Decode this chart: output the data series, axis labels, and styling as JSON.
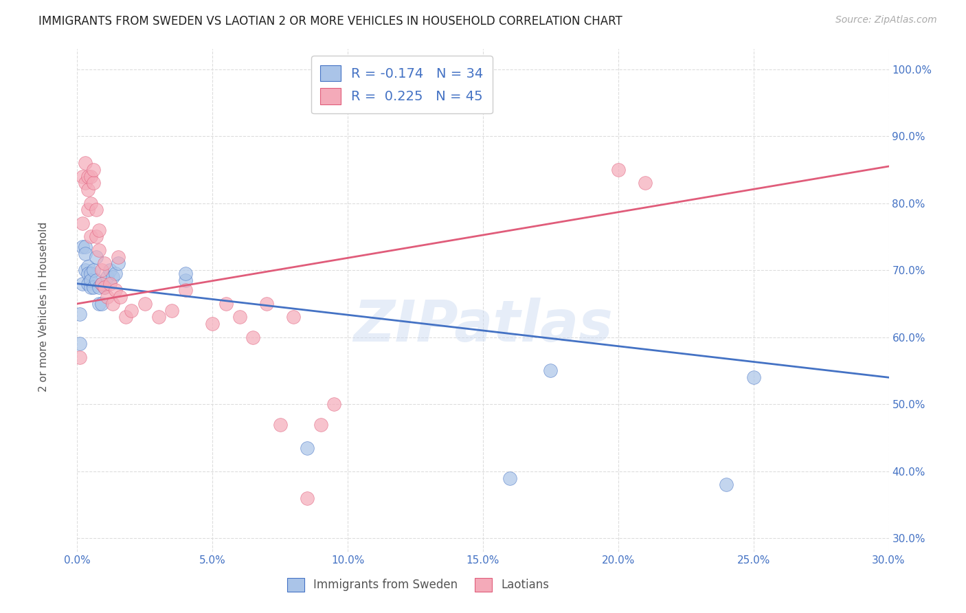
{
  "title": "IMMIGRANTS FROM SWEDEN VS LAOTIAN 2 OR MORE VEHICLES IN HOUSEHOLD CORRELATION CHART",
  "source": "Source: ZipAtlas.com",
  "ylabel": "2 or more Vehicles in Household",
  "xlim": [
    0.0,
    0.3
  ],
  "ylim": [
    0.28,
    1.03
  ],
  "xticks": [
    0.0,
    0.05,
    0.1,
    0.15,
    0.2,
    0.25,
    0.3
  ],
  "yticks": [
    0.3,
    0.4,
    0.5,
    0.6,
    0.7,
    0.8,
    0.9,
    1.0
  ],
  "xtick_labels": [
    "0.0%",
    "5.0%",
    "10.0%",
    "15.0%",
    "20.0%",
    "25.0%",
    "30.0%"
  ],
  "ytick_labels": [
    "30.0%",
    "40.0%",
    "50.0%",
    "60.0%",
    "70.0%",
    "80.0%",
    "90.0%",
    "100.0%"
  ],
  "sweden_color": "#aac4e8",
  "laotian_color": "#f4aab9",
  "sweden_line_color": "#4472c4",
  "laotian_line_color": "#e05c7a",
  "sweden_R": -0.174,
  "sweden_N": 34,
  "laotian_R": 0.225,
  "laotian_N": 45,
  "watermark": "ZIPatlas",
  "legend_label_sweden": "Immigrants from Sweden",
  "legend_label_laotian": "Laotians",
  "sweden_x": [
    0.001,
    0.001,
    0.002,
    0.002,
    0.003,
    0.003,
    0.003,
    0.004,
    0.004,
    0.004,
    0.005,
    0.005,
    0.005,
    0.006,
    0.006,
    0.007,
    0.007,
    0.008,
    0.008,
    0.009,
    0.009,
    0.01,
    0.011,
    0.012,
    0.013,
    0.014,
    0.015,
    0.04,
    0.04,
    0.085,
    0.16,
    0.175,
    0.24,
    0.25
  ],
  "sweden_y": [
    0.635,
    0.59,
    0.735,
    0.68,
    0.735,
    0.7,
    0.725,
    0.705,
    0.695,
    0.68,
    0.695,
    0.675,
    0.685,
    0.7,
    0.675,
    0.685,
    0.72,
    0.675,
    0.65,
    0.68,
    0.65,
    0.675,
    0.69,
    0.7,
    0.69,
    0.695,
    0.71,
    0.685,
    0.695,
    0.435,
    0.39,
    0.55,
    0.38,
    0.54
  ],
  "laotian_x": [
    0.001,
    0.002,
    0.002,
    0.003,
    0.003,
    0.004,
    0.004,
    0.004,
    0.005,
    0.005,
    0.005,
    0.006,
    0.006,
    0.007,
    0.007,
    0.008,
    0.008,
    0.009,
    0.009,
    0.01,
    0.01,
    0.011,
    0.012,
    0.013,
    0.014,
    0.015,
    0.016,
    0.018,
    0.02,
    0.025,
    0.03,
    0.035,
    0.04,
    0.05,
    0.055,
    0.06,
    0.065,
    0.07,
    0.075,
    0.08,
    0.085,
    0.09,
    0.095,
    0.2,
    0.21
  ],
  "laotian_y": [
    0.57,
    0.84,
    0.77,
    0.83,
    0.86,
    0.82,
    0.84,
    0.79,
    0.84,
    0.8,
    0.75,
    0.83,
    0.85,
    0.79,
    0.75,
    0.73,
    0.76,
    0.7,
    0.68,
    0.71,
    0.675,
    0.66,
    0.68,
    0.65,
    0.67,
    0.72,
    0.66,
    0.63,
    0.64,
    0.65,
    0.63,
    0.64,
    0.67,
    0.62,
    0.65,
    0.63,
    0.6,
    0.65,
    0.47,
    0.63,
    0.36,
    0.47,
    0.5,
    0.85,
    0.83
  ],
  "background_color": "#ffffff",
  "grid_color": "#dddddd",
  "sweden_trend": [
    0.68,
    0.54
  ],
  "laotian_trend": [
    0.65,
    0.855
  ]
}
